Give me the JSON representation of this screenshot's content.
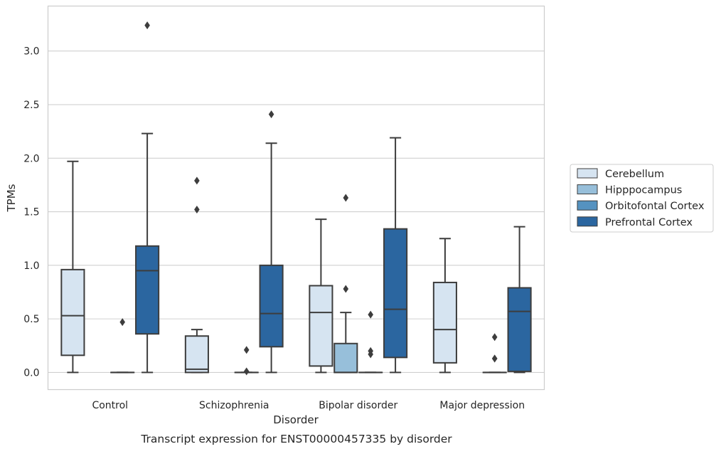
{
  "caption": "Transcript expression for ENST00000457335 by disorder",
  "chart_data": {
    "type": "box",
    "title": "",
    "xlabel": "Disorder",
    "ylabel": "TPMs",
    "ylim": [
      -0.16,
      3.42
    ],
    "yticks": [
      0.0,
      0.5,
      1.0,
      1.5,
      2.0,
      2.5,
      3.0
    ],
    "ytick_labels": [
      "0.0",
      "0.5",
      "1.0",
      "1.5",
      "2.0",
      "2.5",
      "3.0"
    ],
    "grid": "horizontal",
    "legend_position": "right",
    "categories": [
      "Control",
      "Schizophrenia",
      "Bipolar disorder",
      "Major depression"
    ],
    "series": [
      {
        "name": "Cerebellum",
        "color": "#d6e4f1",
        "boxes": [
          {
            "whisker_low": 0.0,
            "q1": 0.16,
            "median": 0.53,
            "q3": 0.96,
            "whisker_high": 1.97,
            "outliers": []
          },
          {
            "whisker_low": 0.0,
            "q1": 0.0,
            "median": 0.03,
            "q3": 0.34,
            "whisker_high": 0.4,
            "outliers": [
              1.52,
              1.79
            ]
          },
          {
            "whisker_low": 0.0,
            "q1": 0.06,
            "median": 0.56,
            "q3": 0.81,
            "whisker_high": 1.43,
            "outliers": []
          },
          {
            "whisker_low": 0.0,
            "q1": 0.09,
            "median": 0.4,
            "q3": 0.84,
            "whisker_high": 1.25,
            "outliers": []
          }
        ]
      },
      {
        "name": "Hipppocampus",
        "color": "#97bfda",
        "boxes": [
          null,
          null,
          {
            "whisker_low": 0.0,
            "q1": 0.0,
            "median": 0.0,
            "q3": 0.27,
            "whisker_high": 0.56,
            "outliers": [
              0.78,
              1.63
            ]
          },
          null
        ]
      },
      {
        "name": "Orbitofontal Cortex",
        "color": "#5592c0",
        "boxes": [
          {
            "whisker_low": 0.0,
            "q1": 0.0,
            "median": 0.0,
            "q3": 0.0,
            "whisker_high": 0.0,
            "outliers": [
              0.47
            ]
          },
          {
            "whisker_low": 0.0,
            "q1": 0.0,
            "median": 0.0,
            "q3": 0.0,
            "whisker_high": 0.0,
            "outliers": [
              0.01,
              0.21
            ]
          },
          {
            "whisker_low": 0.0,
            "q1": 0.0,
            "median": 0.0,
            "q3": 0.0,
            "whisker_high": 0.0,
            "outliers": [
              0.17,
              0.2,
              0.54
            ]
          },
          {
            "whisker_low": 0.0,
            "q1": 0.0,
            "median": 0.0,
            "q3": 0.0,
            "whisker_high": 0.0,
            "outliers": [
              0.13,
              0.13,
              0.33
            ]
          }
        ]
      },
      {
        "name": "Prefrontal Cortex",
        "color": "#2b66a0",
        "boxes": [
          {
            "whisker_low": 0.0,
            "q1": 0.36,
            "median": 0.95,
            "q3": 1.18,
            "whisker_high": 2.23,
            "outliers": [
              3.24
            ]
          },
          {
            "whisker_low": 0.0,
            "q1": 0.24,
            "median": 0.55,
            "q3": 1.0,
            "whisker_high": 2.14,
            "outliers": [
              2.41
            ]
          },
          {
            "whisker_low": 0.0,
            "q1": 0.14,
            "median": 0.59,
            "q3": 1.34,
            "whisker_high": 2.19,
            "outliers": []
          },
          {
            "whisker_low": 0.0,
            "q1": 0.01,
            "median": 0.57,
            "q3": 0.79,
            "whisker_high": 1.36,
            "outliers": []
          }
        ]
      }
    ]
  }
}
